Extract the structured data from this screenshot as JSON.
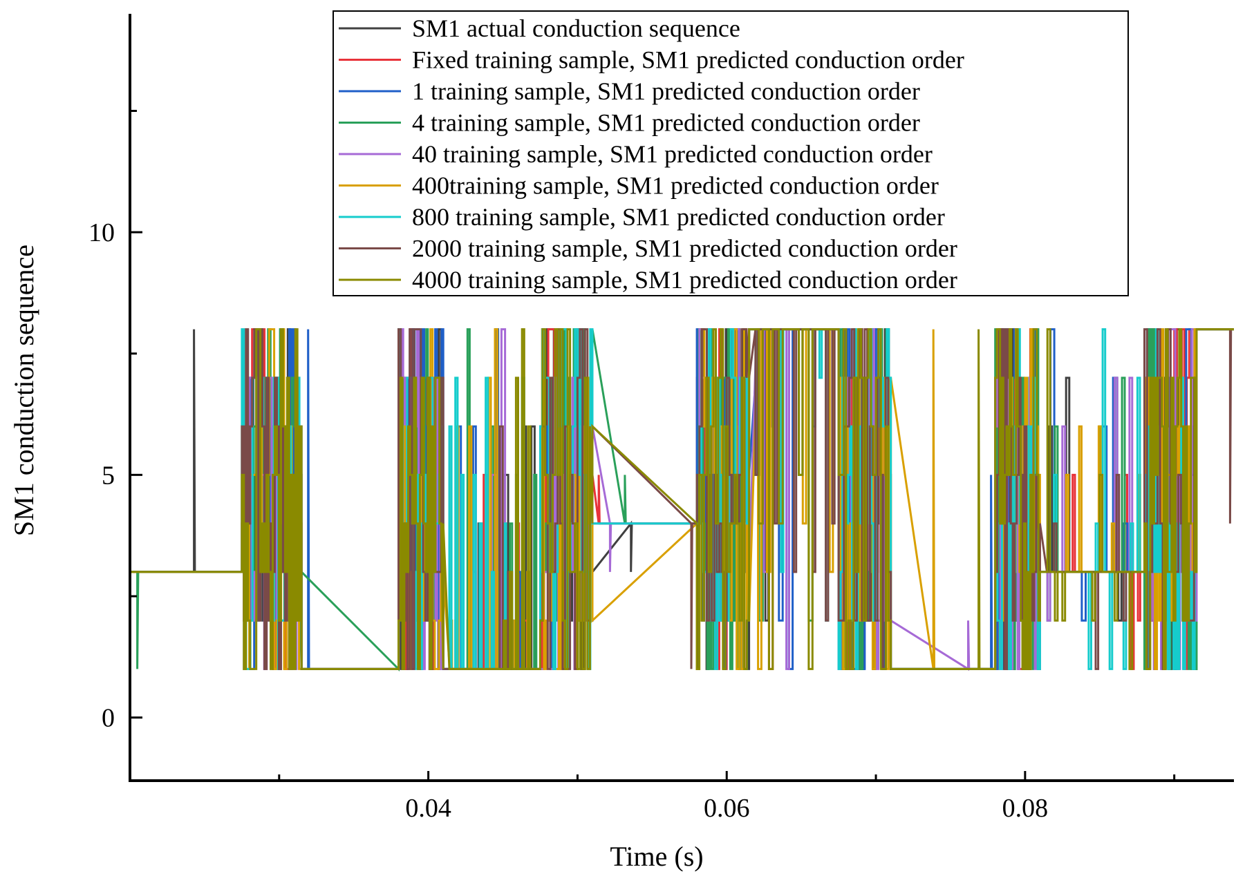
{
  "chart_data": {
    "type": "line",
    "title": "",
    "xlabel": "Time (s)",
    "ylabel": "SM1 conduction sequence",
    "xlim": [
      0.02,
      0.094
    ],
    "ylim": [
      -1.3,
      14.5
    ],
    "xticks": [
      0.04,
      0.06,
      0.08
    ],
    "xtick_labels": [
      "0.04",
      "0.06",
      "0.08"
    ],
    "yticks": [
      0,
      5,
      10
    ],
    "ytick_labels": [
      "0",
      "5",
      "10"
    ],
    "grid": false,
    "legend_position": "top-right",
    "segments": [
      {
        "from": 0.02,
        "to": 0.0275,
        "base": 3,
        "mode": "steady"
      },
      {
        "from": 0.0275,
        "to": 0.0315,
        "mode": "switch"
      },
      {
        "from": 0.0315,
        "to": 0.038,
        "base": 1,
        "mode": "steady"
      },
      {
        "from": 0.038,
        "to": 0.041,
        "mode": "switch"
      },
      {
        "from": 0.041,
        "to": 0.0475,
        "base": 1,
        "mode": "sparse"
      },
      {
        "from": 0.0475,
        "to": 0.051,
        "mode": "switch"
      },
      {
        "from": 0.051,
        "to": 0.058,
        "base": 4,
        "mode": "steady"
      },
      {
        "from": 0.058,
        "to": 0.0615,
        "mode": "switch"
      },
      {
        "from": 0.0615,
        "to": 0.0675,
        "base": 8,
        "mode": "sparse"
      },
      {
        "from": 0.0675,
        "to": 0.071,
        "mode": "switch"
      },
      {
        "from": 0.071,
        "to": 0.078,
        "base": 1,
        "mode": "steady"
      },
      {
        "from": 0.078,
        "to": 0.081,
        "mode": "switch"
      },
      {
        "from": 0.081,
        "to": 0.088,
        "base": 3,
        "mode": "sparse"
      },
      {
        "from": 0.088,
        "to": 0.0915,
        "mode": "switch"
      },
      {
        "from": 0.0915,
        "to": 0.094,
        "base": 8,
        "mode": "steady"
      }
    ],
    "series": [
      {
        "name": "SM1 actual conduction sequence",
        "color": "#404040",
        "seed": 11
      },
      {
        "name": "Fixed training sample, SM1 predicted conduction order",
        "color": "#e8333a",
        "seed": 23
      },
      {
        "name": "1 training sample, SM1 predicted conduction order",
        "color": "#1f5fc8",
        "seed": 37
      },
      {
        "name": "4 training sample, SM1 predicted conduction order",
        "color": "#2aa05a",
        "seed": 41
      },
      {
        "name": "40 training sample, SM1 predicted conduction order",
        "color": "#a66ad6",
        "seed": 53
      },
      {
        "name": "400training sample, SM1 predicted conduction order",
        "color": "#d9a000",
        "seed": 67
      },
      {
        "name": "800 training sample, SM1 predicted conduction order",
        "color": "#16cccc",
        "seed": 79
      },
      {
        "name": "2000 training sample, SM1 predicted conduction order",
        "color": "#7a4a48",
        "seed": 83
      },
      {
        "name": "4000 training sample, SM1 predicted conduction order",
        "color": "#8a8a00",
        "seed": 97
      }
    ]
  }
}
